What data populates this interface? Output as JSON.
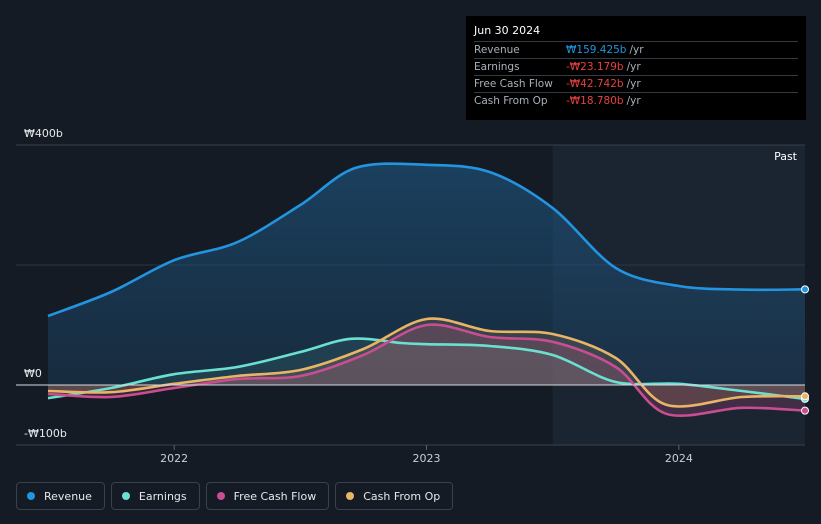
{
  "tooltip": {
    "date": "Jun 30 2024",
    "rows": [
      {
        "label": "Revenue",
        "value": "₩159.425b",
        "unit": "/yr",
        "color": "#2394df"
      },
      {
        "label": "Earnings",
        "value": "-₩23.179b",
        "unit": "/yr",
        "color": "#e64141"
      },
      {
        "label": "Free Cash Flow",
        "value": "-₩42.742b",
        "unit": "/yr",
        "color": "#e64141"
      },
      {
        "label": "Cash From Op",
        "value": "-₩18.780b",
        "unit": "/yr",
        "color": "#e64141"
      }
    ]
  },
  "past_label": "Past",
  "legend": [
    {
      "label": "Revenue",
      "color": "#2394df"
    },
    {
      "label": "Earnings",
      "color": "#6ce0d0"
    },
    {
      "label": "Free Cash Flow",
      "color": "#c84d91"
    },
    {
      "label": "Cash From Op",
      "color": "#e8b466"
    }
  ],
  "chart_data": {
    "type": "line",
    "ytick_labels": [
      "₩400b",
      "₩0",
      "-₩100b"
    ],
    "ylim": [
      -100,
      400
    ],
    "xtick_labels": [
      "2022",
      "2023",
      "2024"
    ],
    "xtick_values": [
      2022.0,
      2023.0,
      2024.0
    ],
    "xlim": [
      2021.5,
      2024.5
    ],
    "past_region_start": 2023.5,
    "grid": true,
    "series": [
      {
        "name": "Revenue",
        "color": "#2394df",
        "x": [
          2021.5,
          2021.75,
          2022.0,
          2022.25,
          2022.5,
          2022.72,
          2023.0,
          2023.25,
          2023.5,
          2023.75,
          2024.0,
          2024.25,
          2024.5
        ],
        "y": [
          115,
          155,
          208,
          238,
          300,
          362,
          367,
          355,
          295,
          195,
          165,
          159,
          159.4
        ]
      },
      {
        "name": "Earnings",
        "color": "#6ce0d0",
        "x": [
          2021.5,
          2021.75,
          2022.0,
          2022.25,
          2022.5,
          2022.7,
          2022.9,
          2023.0,
          2023.25,
          2023.5,
          2023.75,
          2024.0,
          2024.25,
          2024.5
        ],
        "y": [
          -22,
          -5,
          18,
          30,
          55,
          77,
          70,
          68,
          65,
          50,
          5,
          2,
          -10,
          -23.2
        ]
      },
      {
        "name": "Free Cash Flow",
        "color": "#c84d91",
        "x": [
          2021.5,
          2021.75,
          2022.0,
          2022.25,
          2022.5,
          2022.75,
          2023.0,
          2023.25,
          2023.5,
          2023.75,
          2023.95,
          2024.25,
          2024.5
        ],
        "y": [
          -15,
          -20,
          -5,
          10,
          15,
          50,
          100,
          80,
          72,
          30,
          -48,
          -38,
          -42.7
        ]
      },
      {
        "name": "Cash From Op",
        "color": "#e8b466",
        "x": [
          2021.5,
          2021.75,
          2022.0,
          2022.25,
          2022.5,
          2022.75,
          2023.0,
          2023.25,
          2023.5,
          2023.75,
          2023.95,
          2024.25,
          2024.5
        ],
        "y": [
          -10,
          -12,
          2,
          15,
          25,
          60,
          110,
          90,
          85,
          45,
          -33,
          -20,
          -18.8
        ]
      }
    ]
  }
}
